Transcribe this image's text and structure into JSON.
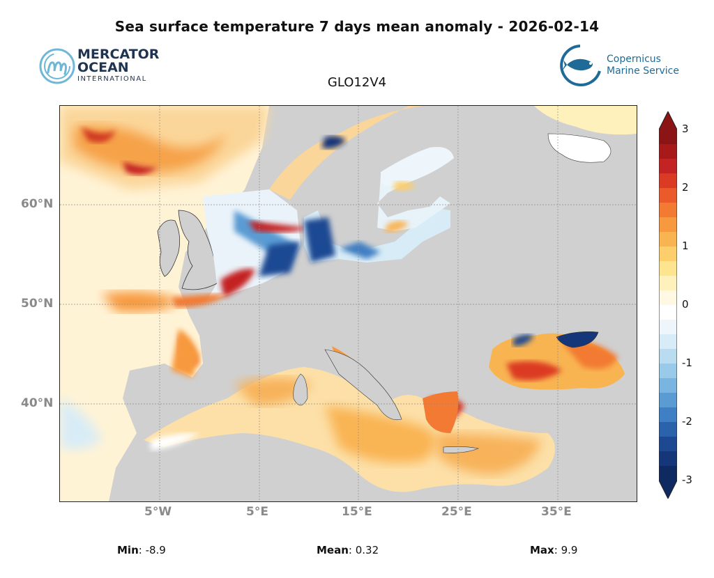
{
  "header": {
    "title": "Sea surface temperature 7 days mean anomaly - 2026-02-14",
    "subtitle": "GLO12V4"
  },
  "logos": {
    "mercator": {
      "line1": "MERCATOR",
      "line2": "OCEAN",
      "line3": "INTERNATIONAL",
      "color": "#1f3450",
      "accent": "#6fb7d6"
    },
    "copernicus": {
      "line1": "Copernicus",
      "line2": "Marine Service",
      "color": "#1f6a96"
    }
  },
  "map": {
    "latitude_labels": [
      "60°N",
      "50°N",
      "40°N"
    ],
    "longitude_labels": [
      "5°W",
      "5°E",
      "15°E",
      "25°E",
      "35°E"
    ],
    "land_color": "#d0d0d0",
    "grid_color": "#8c8c8c"
  },
  "colorbar": {
    "ticks": [
      "3",
      "2",
      "1",
      "0",
      "-1",
      "-2",
      "-3"
    ],
    "min": -3,
    "max": 3,
    "colors_top_to_bottom": [
      "#8b1414",
      "#a81919",
      "#c42323",
      "#db3a24",
      "#ea5a2b",
      "#f27a33",
      "#f7993e",
      "#f9b452",
      "#fcce6c",
      "#fde48e",
      "#fef1bb",
      "#fff9e3",
      "#ffffff",
      "#eef6fb",
      "#d8ecf7",
      "#b9dcf0",
      "#99caea",
      "#79b5e0",
      "#5a9bd3",
      "#3f7fc3",
      "#2a62ac",
      "#1d4993",
      "#153679",
      "#0f2a61"
    ]
  },
  "stats": {
    "min_label": "Min",
    "min_value": "-8.9",
    "mean_label": "Mean",
    "mean_value": "0.32",
    "max_label": "Max",
    "max_value": "9.9"
  }
}
